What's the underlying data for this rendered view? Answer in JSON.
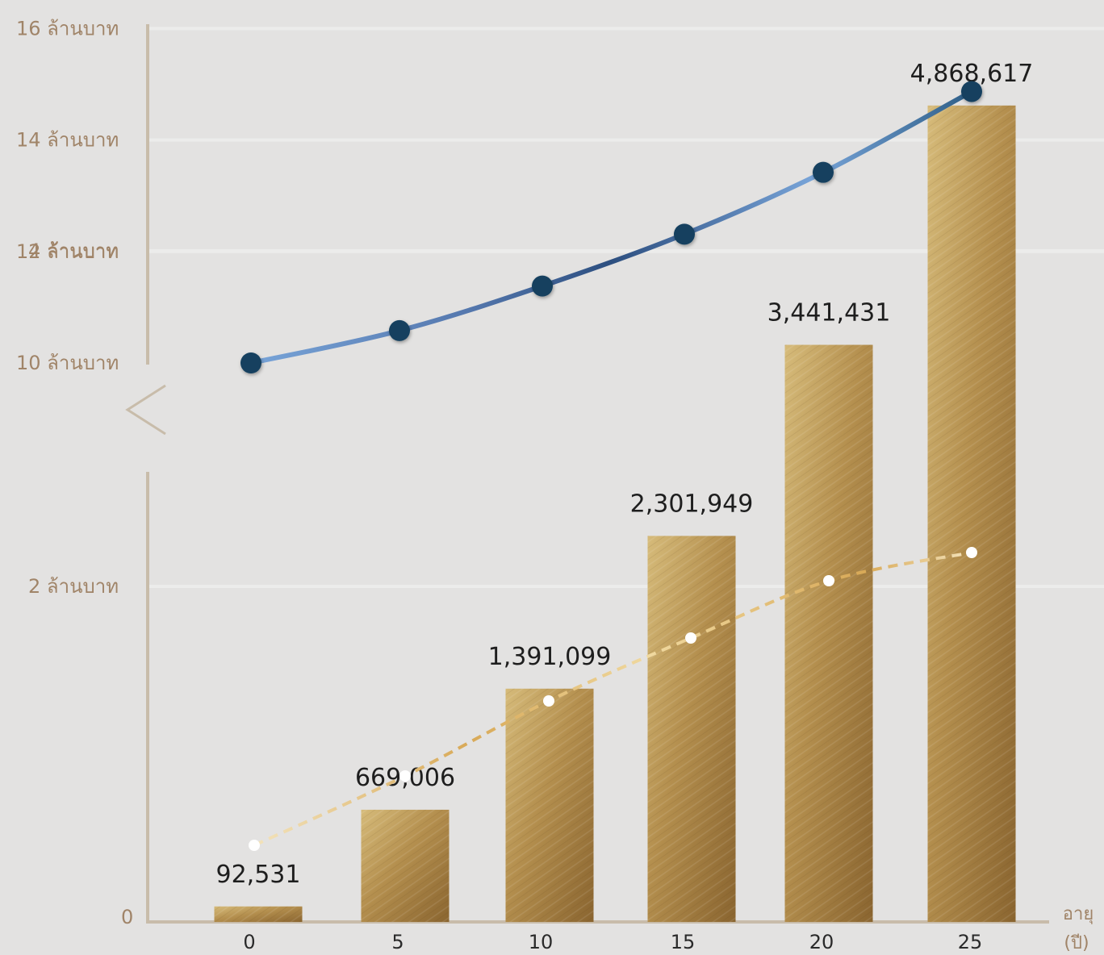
{
  "chart_data": [
    {
      "type": "line",
      "x": [
        0,
        5,
        10,
        15,
        20,
        25
      ],
      "values": [
        10.0,
        10.58,
        11.38,
        12.31,
        13.42,
        14.87
      ],
      "yticks": [
        {
          "value": 10,
          "label": "10 ล้านบาท"
        },
        {
          "value": 12,
          "label": "12 ล้านบาท"
        },
        {
          "value": 14,
          "label": "14 ล้านบาท"
        },
        {
          "value": 16,
          "label": "16 ล้านบาท"
        }
      ],
      "ylim": [
        10,
        16
      ],
      "grid": true,
      "colors": {
        "line_light": "#78a4d8",
        "line_dark": "#2d4f80",
        "marker": "#123f5e"
      }
    },
    {
      "type": "bar",
      "categories": [
        "0",
        "5",
        "10",
        "15",
        "20",
        "25"
      ],
      "values": [
        92531,
        669006,
        1391099,
        2301949,
        3441431,
        4868617
      ],
      "labels": [
        "92,531",
        "669,006",
        "1,391,099",
        "2,301,949",
        "3,441,431",
        "4,868,617"
      ],
      "secondary_line": [
        0.82,
        1.15,
        1.68,
        2.35,
        3.0,
        3.24
      ],
      "yticks": [
        {
          "value": 0,
          "label": "0"
        },
        {
          "value": 2,
          "label": "2 ล้านบาท"
        },
        {
          "value": 4,
          "label": "4 ล้านบาท"
        }
      ],
      "xlabel": [
        "อายุ",
        "(ปี)"
      ],
      "colors": {
        "bar_light": "#d6bb7a",
        "bar_mid": "#b48f4e",
        "bar_dark": "#8a6530",
        "dash_line": "#f0d9a0",
        "axis": "#c8bcaa"
      }
    }
  ]
}
